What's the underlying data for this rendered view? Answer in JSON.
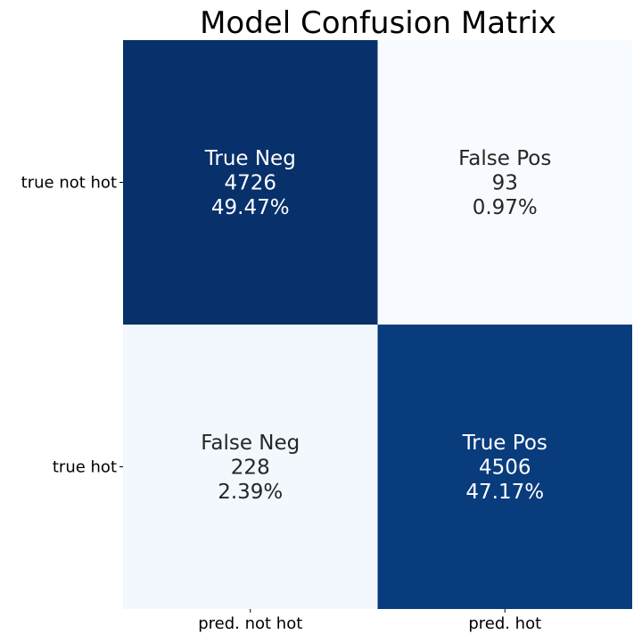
{
  "chart_data": {
    "type": "heatmap",
    "title": "Model Confusion Matrix",
    "row_labels": [
      "true not hot",
      "true hot"
    ],
    "col_labels": [
      "pred. not hot",
      "pred. hot"
    ],
    "colormap": "Blues",
    "colorbar": false,
    "cells": [
      [
        {
          "name": "True Neg",
          "count": "4726",
          "percent": "49.47%",
          "value": 4726,
          "color": "#08306b",
          "text_color": "#ffffff"
        },
        {
          "name": "False Pos",
          "count": "93",
          "percent": "0.97%",
          "value": 93,
          "color": "#f7fbff",
          "text_color": "#262626"
        }
      ],
      [
        {
          "name": "False Neg",
          "count": "228",
          "percent": "2.39%",
          "value": 228,
          "color": "#f2f8fd",
          "text_color": "#262626"
        },
        {
          "name": "True Pos",
          "count": "4506",
          "percent": "47.17%",
          "value": 4506,
          "color": "#083c7d",
          "text_color": "#ffffff"
        }
      ]
    ]
  }
}
